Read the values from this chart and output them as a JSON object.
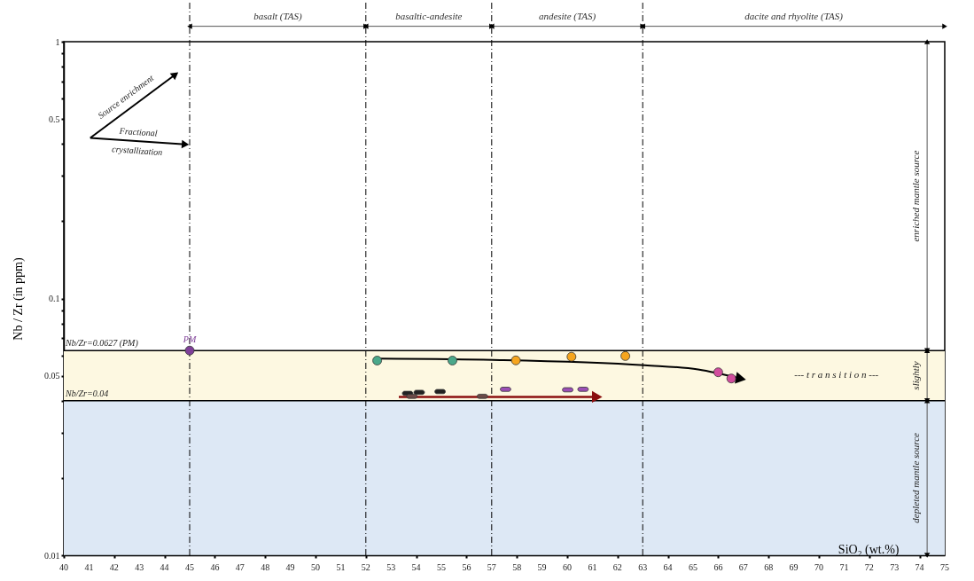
{
  "chart_data": {
    "type": "scatter",
    "xlabel": "SiO₂ (wt.%)",
    "ylabel": "Nb / Zr (in ppm)",
    "log": "y",
    "grid": false,
    "xlim": [
      40,
      75
    ],
    "xticks": [
      40,
      41,
      42,
      43,
      44,
      45,
      46,
      47,
      48,
      49,
      50,
      51,
      52,
      53,
      54,
      55,
      56,
      57,
      58,
      59,
      60,
      61,
      62,
      63,
      64,
      65,
      66,
      67,
      68,
      69,
      70,
      71,
      72,
      73,
      74,
      75
    ],
    "ylim": [
      0.01,
      1
    ],
    "yticks": [
      0.01,
      {
        "value": 0.02,
        "label": null
      },
      {
        "value": 0.03,
        "label": null
      },
      {
        "value": 0.04,
        "label": null
      },
      0.05,
      {
        "value": 0.06,
        "label": null
      },
      {
        "value": 0.07,
        "label": null
      },
      {
        "value": 0.08,
        "label": null
      },
      {
        "value": 0.09,
        "label": null
      },
      0.1,
      {
        "value": 0.2,
        "label": null
      },
      {
        "value": 0.3,
        "label": null
      },
      {
        "value": 0.4,
        "label": null
      },
      0.5,
      {
        "value": 0.6,
        "label": null
      },
      {
        "value": 0.7,
        "label": null
      },
      {
        "value": 0.8,
        "label": null
      },
      {
        "value": 0.9,
        "label": null
      },
      1
    ],
    "series": [
      {
        "type": "line",
        "color": "#000000",
        "x": [
          52.45,
          57.03,
          63.08,
          65.2,
          66.9
        ],
        "values": [
          0.0583,
          0.0577,
          0.055,
          0.0529,
          0.0487
        ]
      },
      {
        "type": "line",
        "color": "#8b0f0f",
        "x": [
          53.31,
          61.19
        ],
        "values": [
          0.0414,
          0.0414
        ]
      },
      {
        "name": "PM",
        "color": "#7f3f98",
        "marker": "circle",
        "x": [
          45
        ],
        "values": [
          0.0627
        ]
      },
      {
        "color": "#4aa88a",
        "marker": "circle",
        "x": [
          52.45,
          55.44
        ],
        "values": [
          0.0573,
          0.0573
        ]
      },
      {
        "color": "#f6a51e",
        "marker": "circle",
        "x": [
          57.96,
          60.17,
          62.31
        ],
        "values": [
          0.0574,
          0.0593,
          0.0597
        ]
      },
      {
        "color": "#d24d9e",
        "marker": "circle",
        "x": [
          66.0,
          66.52
        ],
        "values": [
          0.0516,
          0.0488
        ]
      },
      {
        "color": "#222222",
        "marker": "square",
        "x": [
          53.66,
          54.12,
          54.95
        ],
        "values": [
          0.0427,
          0.0431,
          0.0434
        ]
      },
      {
        "color": "#6b4a47",
        "marker": "square",
        "x": [
          53.83,
          56.63
        ],
        "values": [
          0.0416,
          0.0416
        ]
      },
      {
        "color": "#9b4fb5",
        "marker": "square",
        "x": [
          57.55,
          60.02,
          60.63
        ],
        "values": [
          0.0443,
          0.0441,
          0.0443
        ]
      }
    ],
    "ref_lines": [
      {
        "axis": "y",
        "value": 0.0627,
        "label": "Nb/Zr=0.0627 (PM)",
        "color": "#000000",
        "line_style": "solid"
      },
      {
        "axis": "y",
        "value": 0.04,
        "label": "Nb/Zr=0.04",
        "color": "#000000",
        "line_style": "solid"
      },
      {
        "axis": "x",
        "value": 45,
        "color": "#000000",
        "line_style": "dashdot"
      },
      {
        "axis": "x",
        "value": 52,
        "color": "#000000",
        "line_style": "dashdot"
      },
      {
        "axis": "x",
        "value": 57,
        "color": "#000000",
        "line_style": "dashdot"
      },
      {
        "axis": "x",
        "value": 63,
        "color": "#000000",
        "line_style": "dashdot"
      }
    ],
    "bands": [
      {
        "axis": "y",
        "from": 0.04,
        "to": 0.0627,
        "label": "slightly",
        "color": "#fdf8e1"
      },
      {
        "axis": "y",
        "from": 0.01,
        "to": 0.04,
        "label": "depleted mantle source",
        "color": "#dde8f5"
      }
    ],
    "annotations": [
      "basalt (TAS)",
      "basaltic-andesite",
      "andesite (TAS)",
      "dacite and rhyolite (TAS)",
      "enriched mantle source",
      "Source enrichment",
      "Fractional crystallization",
      "--- t r a n s i t i o n ---"
    ]
  }
}
